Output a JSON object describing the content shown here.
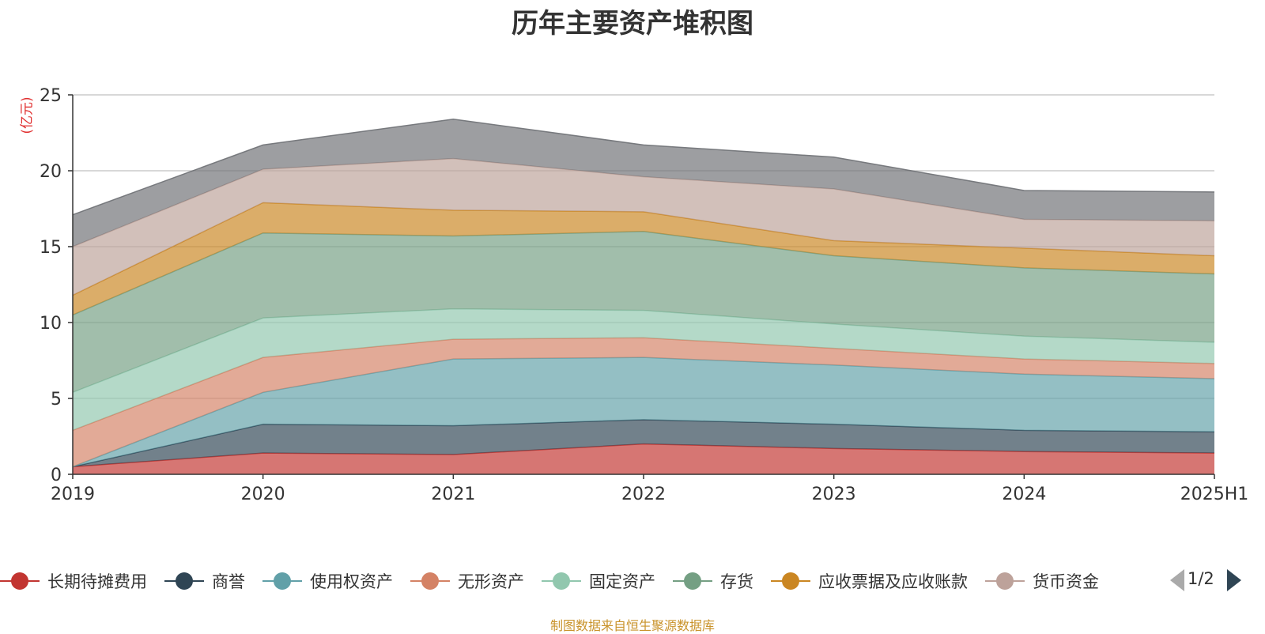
{
  "chart_data": {
    "type": "area",
    "stacked": true,
    "title": "历年主要资产堆积图",
    "ylabel": "(亿元)",
    "ylim": [
      0,
      25
    ],
    "yticks": [
      0,
      5,
      10,
      15,
      20,
      25
    ],
    "categories": [
      "2019",
      "2020",
      "2021",
      "2022",
      "2023",
      "2024",
      "2025H1"
    ],
    "grid": true,
    "legend_position": "bottom",
    "series": [
      {
        "name": "长期待摊费用",
        "color": "#c23531",
        "values": [
          0.5,
          1.4,
          1.3,
          2.0,
          1.7,
          1.5,
          1.4
        ]
      },
      {
        "name": "商誉",
        "color": "#2f4554",
        "values": [
          0.0,
          1.9,
          1.9,
          1.6,
          1.6,
          1.4,
          1.4
        ]
      },
      {
        "name": "使用权资产",
        "color": "#61a0a8",
        "values": [
          0.0,
          2.1,
          4.4,
          4.1,
          3.9,
          3.7,
          3.5
        ]
      },
      {
        "name": "无形资产",
        "color": "#d48265",
        "values": [
          2.4,
          2.3,
          1.3,
          1.3,
          1.1,
          1.0,
          1.0
        ]
      },
      {
        "name": "固定资产",
        "color": "#91c7ae",
        "values": [
          2.5,
          2.6,
          2.0,
          1.8,
          1.6,
          1.5,
          1.4
        ]
      },
      {
        "name": "存货",
        "color": "#749f83",
        "values": [
          5.1,
          5.6,
          4.8,
          5.2,
          4.5,
          4.5,
          4.5
        ]
      },
      {
        "name": "应收票据及应收账款",
        "color": "#ca8622",
        "values": [
          1.3,
          2.0,
          1.7,
          1.3,
          1.0,
          1.3,
          1.2
        ]
      },
      {
        "name": "货币资金",
        "color": "#bda29a",
        "values": [
          3.2,
          2.2,
          3.4,
          2.3,
          3.4,
          1.9,
          2.3
        ]
      },
      {
        "name": "",
        "color": "#6e7074",
        "values": [
          2.1,
          1.6,
          2.6,
          2.1,
          2.1,
          1.9,
          1.9
        ]
      }
    ],
    "legend_items": [
      "长期待摊费用",
      "商誉",
      "使用权资产",
      "无形资产",
      "固定资产",
      "存货",
      "应收票据及应收账款",
      "货币资金"
    ]
  },
  "pager": {
    "text": "1/2"
  },
  "source_note": "制图数据来自恒生聚源数据库"
}
